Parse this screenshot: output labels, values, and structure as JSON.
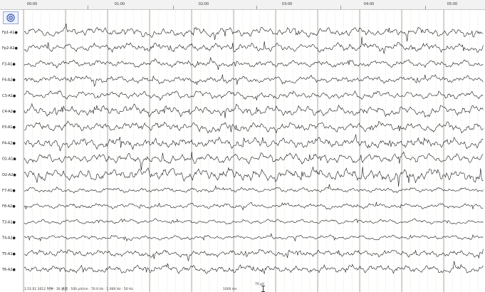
{
  "window": {
    "time_labels": [
      "00:00",
      "01:00",
      "02:00",
      "03:00",
      "04:00",
      "05:00"
    ],
    "settings_icon": "target-icon"
  },
  "channels": [
    {
      "label": "Fp1-A1",
      "amp": 1.0,
      "seed": 3
    },
    {
      "label": "Fp2-A2",
      "amp": 1.0,
      "seed": 7
    },
    {
      "label": "F3-A1",
      "amp": 0.8,
      "seed": 11
    },
    {
      "label": "F4-A2",
      "amp": 0.8,
      "seed": 13
    },
    {
      "label": "C3-A1",
      "amp": 0.9,
      "seed": 17
    },
    {
      "label": "C4-A2",
      "amp": 1.2,
      "seed": 19
    },
    {
      "label": "P3-A1",
      "amp": 1.1,
      "seed": 23
    },
    {
      "label": "P4-A2",
      "amp": 1.2,
      "seed": 29
    },
    {
      "label": "O1-A1",
      "amp": 1.1,
      "seed": 31
    },
    {
      "label": "O2-A2",
      "amp": 1.4,
      "seed": 37
    },
    {
      "label": "F7-A1",
      "amp": 0.6,
      "seed": 41
    },
    {
      "label": "F8-A2",
      "amp": 0.6,
      "seed": 43
    },
    {
      "label": "T3-A1",
      "amp": 0.5,
      "seed": 47
    },
    {
      "label": "T4-A2",
      "amp": 0.5,
      "seed": 53
    },
    {
      "label": "T5-A1",
      "amp": 0.8,
      "seed": 59
    },
    {
      "label": "T6-A2",
      "amp": 0.9,
      "seed": 61
    }
  ],
  "status": {
    "text": "1.51:01 2012 时钟 · 16 通道 · 100 μV/cm · 70.0 Hz · 1.000 Hz · 50 Hz",
    "scale_time": "1000 ms",
    "scale_amp": "70 μV"
  },
  "colors": {
    "trace": "#1a1a1a",
    "grid": "#8c8c8c",
    "grid_minor": "#c8c8a0"
  }
}
